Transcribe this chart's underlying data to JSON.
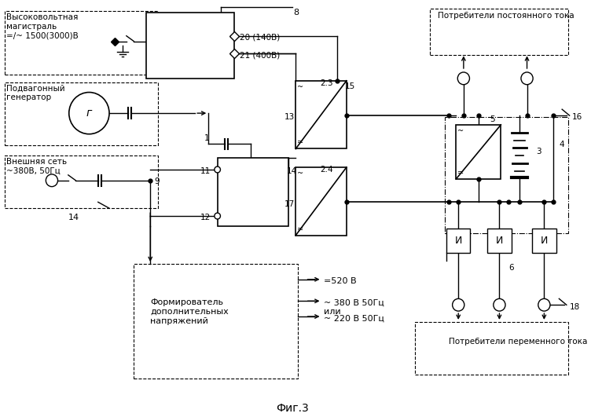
{
  "bg_color": "#ffffff",
  "fig_width": 7.8,
  "fig_height": 5.31,
  "labels": {
    "high_voltage": "Высоковольтная\nмагистраль\n=/~ 1500(3000)В",
    "generator": "Подвагонный\nгенератор",
    "external_net": "Внешняя сеть\n~380В, 50Гц",
    "dc_consumers": "Потребители постоянного тока",
    "ac_consumers": "Потребители переменного тока",
    "voltage_former": "Формирователь\nдополнительных\nнапряжений",
    "output1": "=520 В",
    "output2a": "~ 380 В 50Гц",
    "output2b": "или",
    "output2c": "~ 220 В 50Гц",
    "num8": "8",
    "num20": "20 (140В)",
    "num21": "21 (400В)",
    "num1": "1",
    "num9": "9",
    "num11": "11",
    "num12": "12",
    "num13": "13",
    "num14_label": "14",
    "num15": "15",
    "num17": "17",
    "num5": "5",
    "num6": "6",
    "num3": "3",
    "num4": "4",
    "num16": "16",
    "num18": "18",
    "num23": "2.3",
    "num24": "2.4",
    "fig_label": "Фиг.3"
  }
}
